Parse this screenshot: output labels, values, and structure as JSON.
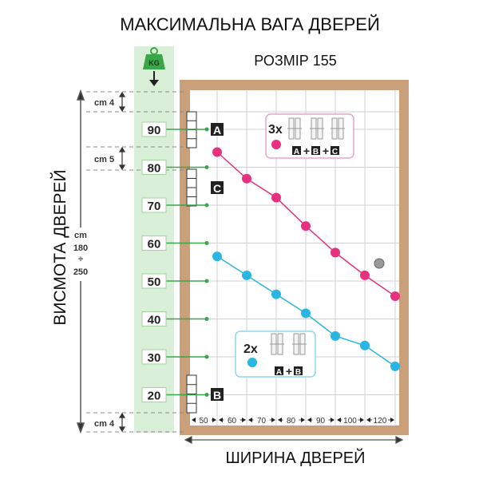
{
  "title": "МАКСИМАЛЬНА ВАГА ДВЕРЕЙ",
  "subtitle": "РОЗМІР 155",
  "weight_icon_label": "KG",
  "height_axis": {
    "label": "ВИСМОТА ДВЕРЕЙ",
    "range_unit": "cm",
    "range_from": "180",
    "range_sep": "÷",
    "range_to": "250",
    "top_gap": "cm 4",
    "mid_gap": "cm 5",
    "bottom_gap": "cm 4"
  },
  "width_axis": {
    "label": "ШИРИНА ДВЕРЕЙ"
  },
  "hinge_labels": {
    "a": "A",
    "b": "B",
    "c": "C"
  },
  "legend": {
    "three": {
      "count": "3x",
      "formula": [
        "A",
        "+",
        "B",
        "+",
        "C"
      ]
    },
    "two": {
      "count": "2x",
      "formula": [
        "A",
        "+",
        "B"
      ]
    }
  },
  "colors": {
    "three_hinges": "#e5317f",
    "two_hinges": "#29b6e3",
    "frame": "#c9a079",
    "band": "#d9efd7",
    "weight_line": "#3aa64a"
  },
  "chart_data": {
    "type": "line",
    "title": "МАКСИМАЛЬНА ВАГА ДВЕРЕЙ",
    "xlabel": "ШИРИНА ДВЕРЕЙ",
    "ylabel": "ВИСМОТА ДВЕРЕЙ",
    "categories": [
      "50",
      "60",
      "70",
      "80",
      "90",
      "100",
      "120"
    ],
    "y_ticks": [
      "90",
      "80",
      "70",
      "60",
      "50",
      "40",
      "30",
      "20"
    ],
    "y_unit": "KG",
    "ylim": [
      20,
      90
    ],
    "grid": true,
    "series": [
      {
        "name": "3x",
        "color": "#e5317f",
        "values": [
          84,
          77,
          72,
          64.5,
          57.5,
          51.5,
          46
        ]
      },
      {
        "name": "2x",
        "color": "#29b6e3",
        "values": [
          56.5,
          51.5,
          46.5,
          41.5,
          35.5,
          33,
          27.5
        ]
      }
    ]
  }
}
